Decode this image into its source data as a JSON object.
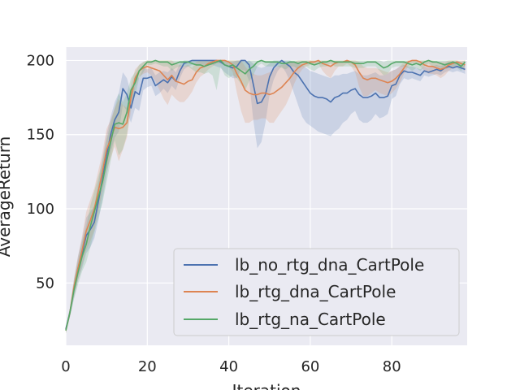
{
  "chart_data": {
    "type": "line",
    "title": "",
    "xlabel": "Iteration",
    "ylabel": "AverageReturn",
    "xlim": [
      0,
      98.5
    ],
    "ylim": [
      8,
      209
    ],
    "xticks": [
      0,
      20,
      40,
      60,
      80
    ],
    "yticks": [
      50,
      100,
      150,
      200
    ],
    "grid": true,
    "legend_position": "lower-right",
    "plot_background": "#eaeaf2",
    "x": [
      0,
      1,
      2,
      3,
      4,
      5,
      6,
      7,
      8,
      9,
      10,
      11,
      12,
      13,
      14,
      15,
      16,
      17,
      18,
      19,
      20,
      21,
      22,
      23,
      24,
      25,
      26,
      27,
      28,
      29,
      30,
      31,
      32,
      33,
      34,
      35,
      36,
      37,
      38,
      39,
      40,
      41,
      42,
      43,
      44,
      45,
      46,
      47,
      48,
      49,
      50,
      51,
      52,
      53,
      54,
      55,
      56,
      57,
      58,
      59,
      60,
      61,
      62,
      63,
      64,
      65,
      66,
      67,
      68,
      69,
      70,
      71,
      72,
      73,
      74,
      75,
      76,
      77,
      78,
      79,
      80,
      81,
      82,
      83,
      84,
      85,
      86,
      87,
      88,
      89,
      90,
      91,
      92,
      93,
      94,
      95,
      96,
      97,
      98
    ],
    "series": [
      {
        "name": "lb_no_rtg_dna_CartPole",
        "color": "#4c72b0",
        "values": [
          19,
          30,
          46,
          60,
          70,
          82,
          86,
          91,
          105,
          120,
          136,
          150,
          160,
          165,
          181,
          177,
          168,
          179,
          177,
          188,
          188,
          189,
          183,
          185,
          187,
          185,
          189,
          186,
          193,
          198,
          199,
          200,
          200,
          200,
          200,
          200,
          200,
          200,
          199,
          197,
          196,
          195,
          196,
          200,
          200,
          197,
          184,
          171,
          172,
          177,
          189,
          195,
          198,
          200,
          198,
          196,
          192,
          190,
          186,
          182,
          178,
          176,
          175,
          175,
          174,
          172,
          175,
          176,
          178,
          178,
          180,
          181,
          177,
          175,
          175,
          176,
          178,
          175,
          175,
          176,
          183,
          184,
          190,
          193,
          192,
          192,
          191,
          190,
          193,
          192,
          193,
          194,
          193,
          195,
          196,
          195,
          196,
          195,
          194
        ],
        "band_lo": [
          17,
          27,
          40,
          52,
          60,
          70,
          74,
          80,
          92,
          106,
          122,
          138,
          148,
          152,
          170,
          166,
          158,
          168,
          166,
          180,
          182,
          183,
          176,
          178,
          181,
          178,
          183,
          180,
          188,
          194,
          196,
          197,
          197,
          197,
          197,
          197,
          197,
          196,
          195,
          192,
          190,
          188,
          188,
          194,
          193,
          186,
          160,
          141,
          145,
          158,
          177,
          187,
          193,
          196,
          192,
          186,
          178,
          170,
          162,
          158,
          156,
          154,
          152,
          151,
          150,
          149,
          152,
          154,
          158,
          160,
          164,
          166,
          160,
          158,
          158,
          160,
          164,
          161,
          162,
          164,
          174,
          176,
          184,
          188,
          187,
          188,
          187,
          186,
          190,
          189,
          190,
          191,
          190,
          192,
          193,
          192,
          193,
          192,
          191
        ],
        "band_hi": [
          21,
          33,
          52,
          68,
          80,
          94,
          98,
          102,
          118,
          134,
          150,
          162,
          172,
          178,
          192,
          188,
          178,
          190,
          188,
          195,
          194,
          195,
          190,
          192,
          193,
          192,
          195,
          192,
          198,
          200,
          200,
          200,
          200,
          200,
          200,
          200,
          200,
          200,
          200,
          200,
          199,
          199,
          200,
          200,
          200,
          200,
          198,
          196,
          195,
          196,
          198,
          200,
          200,
          200,
          200,
          200,
          199,
          198,
          197,
          195,
          193,
          192,
          191,
          190,
          189,
          188,
          190,
          190,
          191,
          191,
          192,
          193,
          191,
          190,
          190,
          191,
          192,
          190,
          190,
          191,
          193,
          194,
          196,
          197,
          196,
          196,
          195,
          194,
          196,
          195,
          196,
          197,
          196,
          198,
          199,
          198,
          199,
          198,
          197
        ]
      },
      {
        "name": "lb_rtg_dna_CartPole",
        "color": "#dd8452",
        "values": [
          18,
          30,
          47,
          60,
          72,
          85,
          92,
          100,
          112,
          125,
          140,
          147,
          155,
          154,
          155,
          158,
          175,
          188,
          193,
          195,
          196,
          195,
          194,
          193,
          190,
          187,
          190,
          186,
          185,
          184,
          186,
          187,
          192,
          195,
          196,
          198,
          199,
          200,
          200,
          200,
          199,
          197,
          191,
          186,
          180,
          178,
          177,
          177,
          178,
          178,
          177,
          178,
          180,
          182,
          185,
          188,
          192,
          195,
          197,
          198,
          199,
          199,
          200,
          198,
          197,
          196,
          198,
          199,
          199,
          200,
          199,
          197,
          192,
          188,
          187,
          188,
          188,
          187,
          186,
          185,
          186,
          188,
          191,
          195,
          199,
          200,
          200,
          199,
          197,
          196,
          196,
          195,
          194,
          195,
          197,
          198,
          199,
          198,
          197
        ],
        "band_lo": [
          16,
          27,
          41,
          52,
          62,
          72,
          78,
          86,
          98,
          112,
          126,
          134,
          142,
          132,
          140,
          148,
          166,
          182,
          189,
          191,
          192,
          190,
          186,
          180,
          174,
          170,
          177,
          174,
          172,
          172,
          175,
          179,
          185,
          189,
          191,
          194,
          196,
          198,
          198,
          198,
          196,
          192,
          178,
          166,
          158,
          158,
          160,
          160,
          161,
          161,
          158,
          158,
          162,
          166,
          170,
          176,
          184,
          190,
          194,
          196,
          197,
          197,
          198,
          193,
          190,
          188,
          193,
          196,
          196,
          198,
          196,
          192,
          182,
          176,
          176,
          178,
          180,
          178,
          177,
          176,
          178,
          181,
          185,
          191,
          196,
          198,
          198,
          196,
          193,
          191,
          191,
          190,
          188,
          190,
          193,
          195,
          197,
          195,
          193
        ],
        "band_hi": [
          20,
          33,
          53,
          68,
          82,
          98,
          106,
          114,
          126,
          138,
          154,
          160,
          168,
          174,
          170,
          168,
          184,
          194,
          197,
          199,
          200,
          200,
          200,
          200,
          200,
          200,
          200,
          198,
          197,
          196,
          197,
          195,
          199,
          200,
          200,
          200,
          200,
          200,
          200,
          200,
          200,
          200,
          200,
          200,
          196,
          193,
          191,
          190,
          190,
          191,
          192,
          194,
          196,
          197,
          198,
          199,
          199,
          200,
          200,
          200,
          200,
          200,
          200,
          200,
          200,
          200,
          200,
          200,
          200,
          200,
          200,
          200,
          199,
          196,
          195,
          195,
          195,
          194,
          193,
          192,
          193,
          194,
          196,
          199,
          200,
          200,
          200,
          200,
          200,
          200,
          200,
          199,
          199,
          199,
          200,
          200,
          200,
          200,
          200
        ]
      },
      {
        "name": "lb_rtg_na_CartPole",
        "color": "#55a868",
        "values": [
          18,
          30,
          45,
          57,
          68,
          76,
          88,
          98,
          108,
          118,
          132,
          145,
          157,
          158,
          157,
          165,
          180,
          185,
          193,
          196,
          199,
          199,
          200,
          199,
          199,
          199,
          197,
          198,
          199,
          199,
          199,
          198,
          197,
          197,
          196,
          197,
          198,
          199,
          200,
          197,
          196,
          197,
          195,
          193,
          191,
          194,
          196,
          199,
          200,
          199,
          199,
          199,
          199,
          198,
          198,
          199,
          199,
          198,
          199,
          199,
          198,
          197,
          198,
          199,
          199,
          200,
          199,
          199,
          199,
          199,
          199,
          198,
          198,
          198,
          199,
          199,
          199,
          197,
          195,
          196,
          198,
          199,
          199,
          199,
          198,
          197,
          198,
          197,
          199,
          200,
          199,
          199,
          198,
          197,
          198,
          199,
          198,
          196,
          199
        ],
        "band_lo": [
          16,
          27,
          39,
          49,
          58,
          64,
          74,
          84,
          94,
          104,
          118,
          132,
          146,
          136,
          140,
          150,
          170,
          176,
          188,
          192,
          197,
          197,
          198,
          197,
          196,
          196,
          193,
          195,
          196,
          196,
          196,
          194,
          192,
          192,
          191,
          192,
          190,
          180,
          196,
          190,
          188,
          190,
          188,
          184,
          180,
          186,
          190,
          196,
          198,
          196,
          196,
          196,
          196,
          195,
          194,
          196,
          196,
          194,
          196,
          196,
          194,
          193,
          195,
          196,
          196,
          198,
          196,
          196,
          196,
          196,
          196,
          195,
          195,
          195,
          196,
          196,
          196,
          193,
          190,
          191,
          195,
          196,
          196,
          196,
          195,
          193,
          195,
          193,
          196,
          198,
          196,
          196,
          195,
          194,
          195,
          196,
          195,
          193,
          196
        ],
        "band_hi": [
          20,
          33,
          51,
          65,
          78,
          88,
          102,
          112,
          122,
          132,
          146,
          158,
          168,
          178,
          172,
          178,
          188,
          192,
          197,
          199,
          200,
          200,
          200,
          200,
          200,
          200,
          200,
          200,
          200,
          200,
          200,
          200,
          200,
          200,
          200,
          200,
          200,
          200,
          200,
          200,
          200,
          200,
          200,
          200,
          199,
          200,
          200,
          200,
          200,
          200,
          200,
          200,
          200,
          200,
          200,
          200,
          200,
          200,
          200,
          200,
          200,
          200,
          200,
          200,
          200,
          200,
          200,
          200,
          200,
          200,
          200,
          200,
          200,
          200,
          200,
          200,
          200,
          200,
          199,
          200,
          200,
          200,
          200,
          200,
          200,
          200,
          200,
          200,
          200,
          200,
          200,
          200,
          200,
          200,
          200,
          200,
          200,
          199,
          200
        ]
      }
    ]
  }
}
